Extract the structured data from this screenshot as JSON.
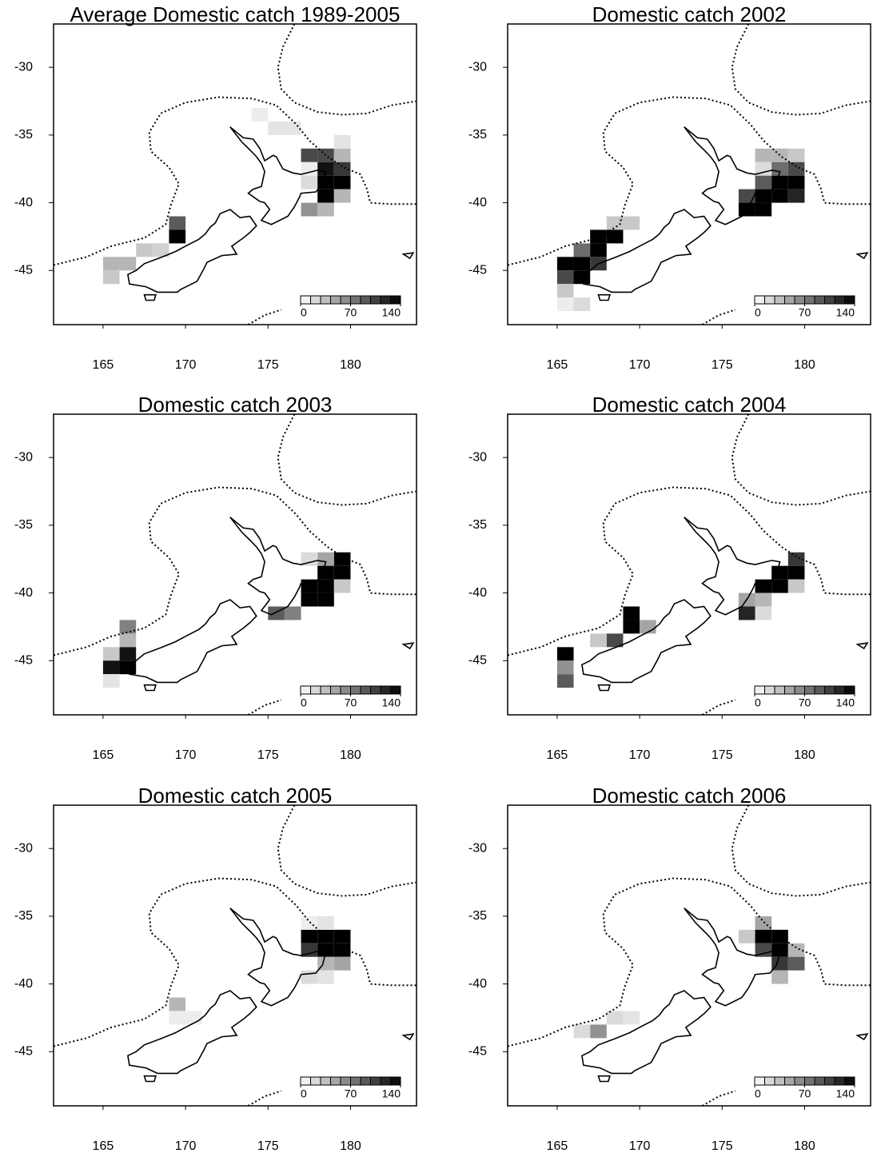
{
  "chart_data": [
    {
      "type": "heatmap",
      "title": "Average Domestic catch 1989-2005",
      "x": [
        177.5,
        178.5,
        179.5,
        177.5,
        178.5,
        179.5,
        177.5,
        178.5,
        179.5,
        178.5,
        179.5,
        177.5,
        178.5,
        169.5,
        169.5,
        165.5,
        165.5,
        166.5,
        167.5,
        168.5,
        174.5,
        175.5,
        176.5,
        179.5
      ],
      "y": [
        -36.5,
        -36.5,
        -36.5,
        -37.5,
        -37.5,
        -37.5,
        -38.5,
        -38.5,
        -38.5,
        -39.5,
        -39.5,
        -40.5,
        -40.5,
        -41.5,
        -42.5,
        -44.5,
        -45.5,
        -44.5,
        -43.5,
        -43.5,
        -33.5,
        -34.5,
        -34.5,
        -35.5
      ],
      "values": [
        100,
        100,
        40,
        10,
        130,
        110,
        20,
        140,
        140,
        140,
        40,
        60,
        40,
        90,
        140,
        40,
        30,
        40,
        30,
        25,
        10,
        15,
        15,
        15
      ],
      "xlim": [
        162,
        184
      ],
      "ylim": [
        -49,
        -26.8
      ],
      "xticks": [
        165,
        170,
        175,
        180
      ],
      "yticks": [
        -30,
        -35,
        -40,
        -45
      ],
      "colorbar": {
        "lim": [
          0,
          140
        ],
        "ticks": [
          0,
          70,
          140
        ]
      }
    },
    {
      "type": "heatmap",
      "title": "Domestic catch 2002",
      "x": [
        177.5,
        178.5,
        179.5,
        177.5,
        178.5,
        179.5,
        177.5,
        178.5,
        179.5,
        176.5,
        177.5,
        178.5,
        179.5,
        176.5,
        177.5,
        168.5,
        169.5,
        167.5,
        168.5,
        166.5,
        167.5,
        165.5,
        166.5,
        167.5,
        165.5,
        166.5,
        165.5,
        165.5,
        166.5
      ],
      "y": [
        -36.5,
        -36.5,
        -36.5,
        -37.5,
        -37.5,
        -37.5,
        -38.5,
        -38.5,
        -38.5,
        -39.5,
        -39.5,
        -39.5,
        -39.5,
        -40.5,
        -40.5,
        -41.5,
        -41.5,
        -42.5,
        -42.5,
        -43.5,
        -43.5,
        -44.5,
        -44.5,
        -44.5,
        -45.5,
        -45.5,
        -46.5,
        -47.5,
        -47.5
      ],
      "values": [
        40,
        40,
        30,
        20,
        80,
        100,
        90,
        140,
        140,
        100,
        140,
        140,
        120,
        140,
        140,
        30,
        30,
        140,
        140,
        80,
        140,
        140,
        140,
        110,
        100,
        140,
        30,
        10,
        20
      ],
      "xlim": [
        162,
        184
      ],
      "ylim": [
        -49,
        -26.8
      ],
      "xticks": [
        165,
        170,
        175,
        180
      ],
      "yticks": [
        -30,
        -35,
        -40,
        -45
      ],
      "colorbar": {
        "lim": [
          0,
          140
        ],
        "ticks": [
          0,
          70,
          140
        ]
      }
    },
    {
      "type": "heatmap",
      "title": "Domestic catch 2003",
      "x": [
        179.5,
        178.5,
        177.5,
        178.5,
        179.5,
        177.5,
        178.5,
        179.5,
        177.5,
        178.5,
        175.5,
        176.5,
        166.5,
        166.5,
        166.5,
        165.5,
        165.5,
        166.5,
        165.5
      ],
      "y": [
        -37.5,
        -37.5,
        -37.5,
        -38.5,
        -38.5,
        -39.5,
        -39.5,
        -39.5,
        -40.5,
        -40.5,
        -41.5,
        -41.5,
        -42.5,
        -43.5,
        -44.5,
        -44.5,
        -45.5,
        -45.5,
        -46.5
      ],
      "values": [
        140,
        50,
        20,
        140,
        140,
        140,
        140,
        30,
        140,
        140,
        90,
        70,
        70,
        40,
        130,
        30,
        130,
        140,
        15
      ],
      "xlim": [
        162,
        184
      ],
      "ylim": [
        -49,
        -26.8
      ],
      "xticks": [
        165,
        170,
        175,
        180
      ],
      "yticks": [
        -30,
        -35,
        -40,
        -45
      ],
      "colorbar": {
        "lim": [
          0,
          140
        ],
        "ticks": [
          0,
          70,
          140
        ]
      }
    },
    {
      "type": "heatmap",
      "title": "Domestic catch 2004",
      "x": [
        179.5,
        178.5,
        179.5,
        177.5,
        178.5,
        179.5,
        177.5,
        176.5,
        176.5,
        177.5,
        169.5,
        169.5,
        170.5,
        168.5,
        167.5,
        165.5,
        165.5,
        165.5
      ],
      "y": [
        -37.5,
        -38.5,
        -38.5,
        -39.5,
        -39.5,
        -39.5,
        -40.5,
        -40.5,
        -41.5,
        -41.5,
        -41.5,
        -42.5,
        -42.5,
        -43.5,
        -43.5,
        -44.5,
        -45.5,
        -46.5
      ],
      "values": [
        110,
        140,
        140,
        140,
        140,
        30,
        40,
        50,
        120,
        20,
        140,
        140,
        50,
        100,
        30,
        140,
        60,
        90
      ],
      "xlim": [
        162,
        184
      ],
      "ylim": [
        -49,
        -26.8
      ],
      "xticks": [
        165,
        170,
        175,
        180
      ],
      "yticks": [
        -30,
        -35,
        -40,
        -45
      ],
      "colorbar": {
        "lim": [
          0,
          140
        ],
        "ticks": [
          0,
          70,
          140
        ]
      }
    },
    {
      "type": "heatmap",
      "title": "Domestic catch 2005",
      "x": [
        177.5,
        178.5,
        179.5,
        177.5,
        178.5,
        179.5,
        178.5,
        179.5,
        177.5,
        178.5,
        169.5,
        169.5,
        170.5,
        178.5,
        177.5
      ],
      "y": [
        -36.5,
        -36.5,
        -36.5,
        -37.5,
        -37.5,
        -37.5,
        -38.5,
        -38.5,
        -39.5,
        -39.5,
        -41.5,
        -42.5,
        -42.5,
        -35.5,
        -35.5
      ],
      "values": [
        140,
        140,
        140,
        110,
        140,
        140,
        40,
        50,
        20,
        15,
        40,
        10,
        10,
        15,
        10
      ],
      "xlim": [
        162,
        184
      ],
      "ylim": [
        -49,
        -26.8
      ],
      "xticks": [
        165,
        170,
        175,
        180
      ],
      "yticks": [
        -30,
        -35,
        -40,
        -45
      ],
      "colorbar": {
        "lim": [
          0,
          140
        ],
        "ticks": [
          0,
          70,
          140
        ]
      }
    },
    {
      "type": "heatmap",
      "title": "Domestic catch 2006",
      "x": [
        177.5,
        176.5,
        177.5,
        178.5,
        177.5,
        178.5,
        179.5,
        178.5,
        179.5,
        178.5,
        168.5,
        169.5,
        167.5,
        166.5
      ],
      "y": [
        -35.5,
        -36.5,
        -36.5,
        -36.5,
        -37.5,
        -37.5,
        -37.5,
        -38.5,
        -38.5,
        -39.5,
        -42.5,
        -42.5,
        -43.5,
        -43.5
      ],
      "values": [
        50,
        30,
        140,
        140,
        100,
        140,
        40,
        110,
        90,
        40,
        20,
        15,
        60,
        20
      ],
      "xlim": [
        162,
        184
      ],
      "ylim": [
        -49,
        -26.8
      ],
      "xticks": [
        165,
        170,
        175,
        180
      ],
      "yticks": [
        -30,
        -35,
        -40,
        -45
      ],
      "colorbar": {
        "lim": [
          0,
          140
        ],
        "ticks": [
          0,
          70,
          140
        ]
      }
    }
  ]
}
